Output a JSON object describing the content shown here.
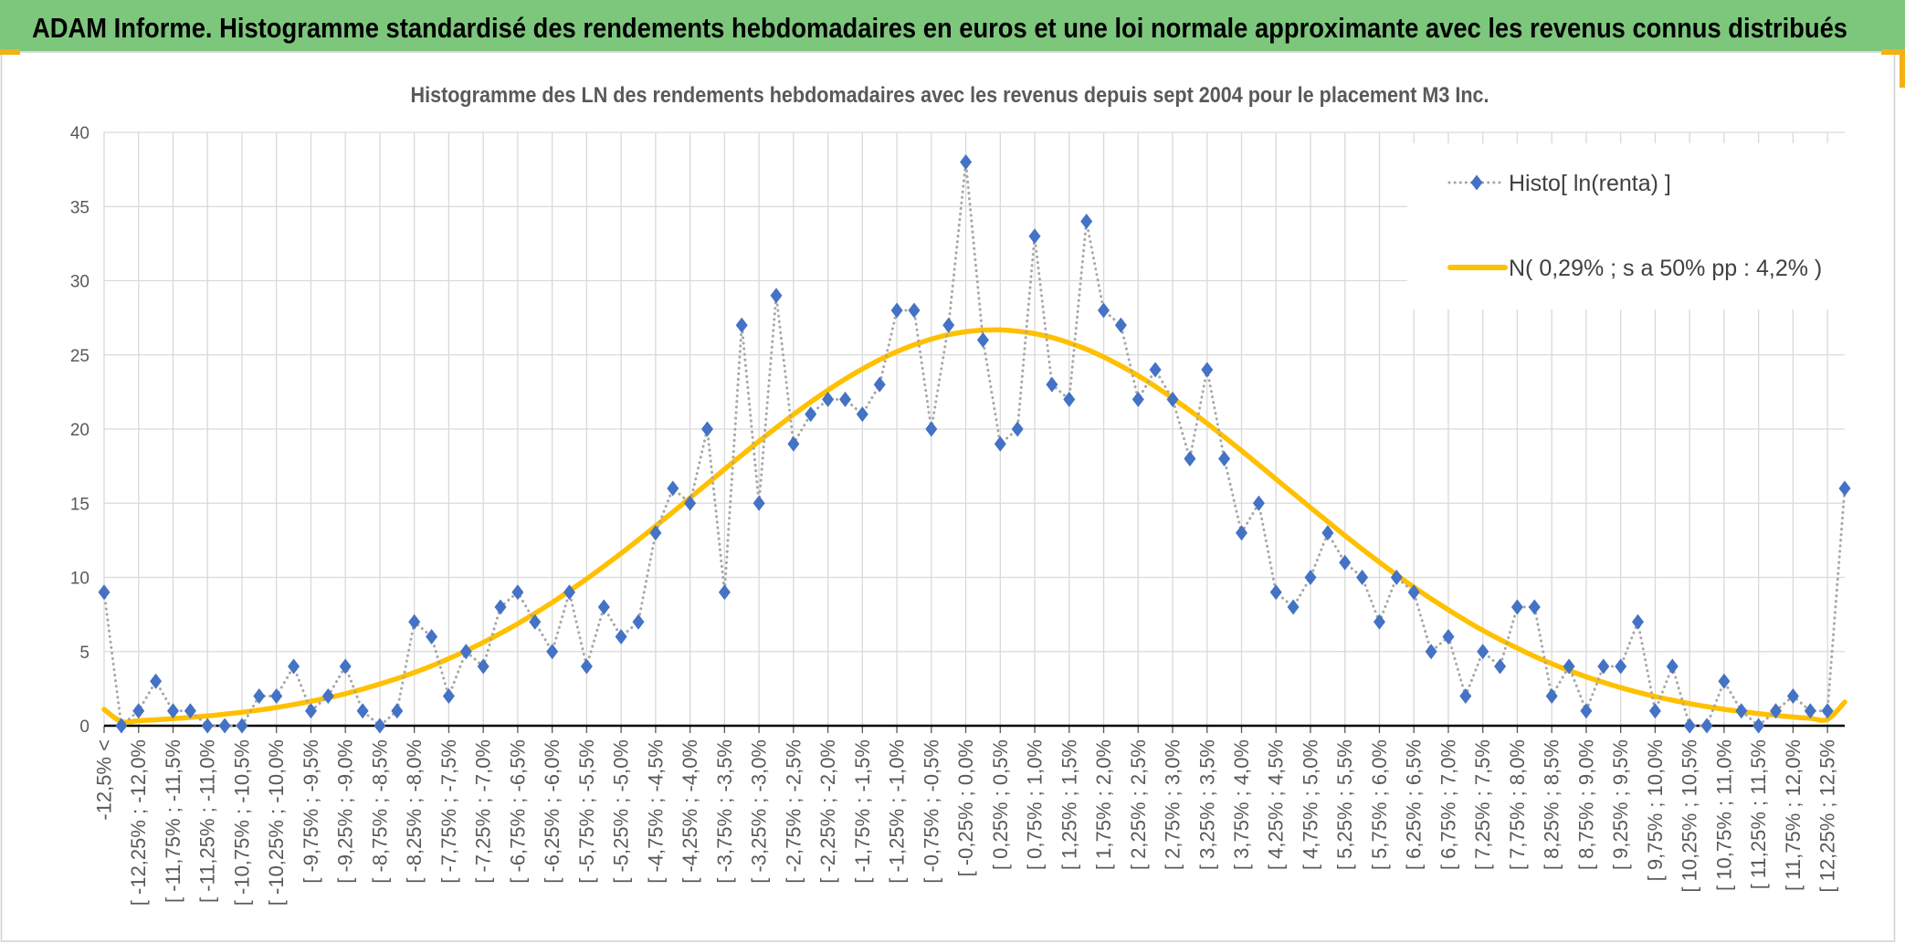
{
  "header": {
    "title": "ADAM Informe. Histogramme standardisé des rendements hebdomadaires en euros et une loi normale approximante avec les revenus connus distribués"
  },
  "colors": {
    "header_bg": "#7dc77d",
    "accent": "#f2b215",
    "frame": "#d0d0d0",
    "grid": "#d9d9d9",
    "axis": "#000000",
    "text": "#595959",
    "legend_text": "#404040",
    "histo_marker": "#4472c4",
    "histo_line": "#a6a6a6",
    "normal_line": "#ffc000"
  },
  "chart_data": {
    "type": "line",
    "title": "Histogramme des LN des rendements hebdomadaires avec les revenus depuis sept 2004 pour le placement M3 Inc.",
    "xlabel": "",
    "ylabel": "",
    "ylim": [
      0,
      40
    ],
    "y_tick_labels": [
      0,
      5,
      10,
      15,
      20,
      25,
      30,
      35,
      40
    ],
    "grid": true,
    "legend": "top-right",
    "x_tick_labels": [
      "-12,5% <",
      "[ -12,25% ; -12,0%",
      "[ -11,75% ; -11,5%",
      "[ -11,25% ; -11,0%",
      "[ -10,75% ; -10,5%",
      "[ -10,25% ; -10,0%",
      "[ -9,75% ; -9,5%",
      "[ -9,25% ; -9,0%",
      "[ -8,75% ; -8,5%",
      "[ -8,25% ; -8,0%",
      "[ -7,75% ; -7,5%",
      "[ -7,25% ; -7,0%",
      "[ -6,75% ; -6,5%",
      "[ -6,25% ; -6,0%",
      "[ -5,75% ; -5,5%",
      "[ -5,25% ; -5,0%",
      "[ -4,75% ; -4,5%",
      "[ -4,25% ; -4,0%",
      "[ -3,75% ; -3,5%",
      "[ -3,25% ; -3,0%",
      "[ -2,75% ; -2,5%",
      "[ -2,25% ; -2,0%",
      "[ -1,75% ; -1,5%",
      "[ -1,25% ; -1,0%",
      "[ -0,75% ; -0,5%",
      "[ -0,25% ; 0,0%",
      "[ 0,25% ; 0,5%",
      "[ 0,75% ; 1,0%",
      "[ 1,25% ; 1,5%",
      "[ 1,75% ; 2,0%",
      "[ 2,25% ; 2,5%",
      "[ 2,75% ; 3,0%",
      "[ 3,25% ; 3,5%",
      "[ 3,75% ; 4,0%",
      "[ 4,25% ; 4,5%",
      "[ 4,75% ; 5,0%",
      "[ 5,25% ; 5,5%",
      "[ 5,75% ; 6,0%",
      "[ 6,25% ; 6,5%",
      "[ 6,75% ; 7,0%",
      "[ 7,25% ; 7,5%",
      "[ 7,75% ; 8,0%",
      "[ 8,25% ; 8,5%",
      "[ 8,75% ; 9,0%",
      "[ 9,25% ; 9,5%",
      "[ 9,75% ; 10,0%",
      "[ 10,25% ; 10,5%",
      "[ 10,75% ; 11,0%",
      "[ 11,25% ; 11,5%",
      "[ 11,75% ; 12,0%",
      "[ 12,25% ; 12,5%"
    ],
    "series": [
      {
        "name": "Histo[ ln(renta) ]",
        "values": [
          9,
          0,
          1,
          3,
          1,
          1,
          0,
          0,
          0,
          2,
          2,
          4,
          1,
          2,
          4,
          1,
          0,
          1,
          7,
          6,
          2,
          5,
          4,
          8,
          9,
          7,
          5,
          9,
          4,
          8,
          6,
          7,
          13,
          16,
          15,
          20,
          9,
          27,
          15,
          29,
          19,
          21,
          22,
          22,
          21,
          23,
          28,
          28,
          20,
          27,
          38,
          26,
          19,
          20,
          33,
          23,
          22,
          34,
          28,
          27,
          22,
          24,
          22,
          18,
          24,
          18,
          13,
          15,
          9,
          8,
          10,
          13,
          11,
          10,
          7,
          10,
          9,
          5,
          6,
          2,
          5,
          4,
          8,
          8,
          2,
          4,
          1,
          4,
          4,
          7,
          1,
          4,
          0,
          0,
          3,
          1,
          0,
          1,
          2,
          1,
          1,
          16
        ]
      },
      {
        "name": "N( 0,29% ; s a 50% pp : 4,2% )",
        "values": [
          1.1,
          0.28,
          0.34,
          0.4,
          0.48,
          0.56,
          0.66,
          0.78,
          0.91,
          1.06,
          1.23,
          1.43,
          1.65,
          1.89,
          2.16,
          2.47,
          2.81,
          3.18,
          3.59,
          4.03,
          4.52,
          5.05,
          5.62,
          6.23,
          6.88,
          7.58,
          8.31,
          9.09,
          9.9,
          10.75,
          11.62,
          12.53,
          13.46,
          14.4,
          15.36,
          16.32,
          17.29,
          18.24,
          19.18,
          20.09,
          20.98,
          21.82,
          22.62,
          23.37,
          24.05,
          24.67,
          25.22,
          25.68,
          26.06,
          26.36,
          26.56,
          26.67,
          26.68,
          26.6,
          26.43,
          26.17,
          25.81,
          25.38,
          24.86,
          24.26,
          23.6,
          22.87,
          22.08,
          21.25,
          20.38,
          19.47,
          18.54,
          17.59,
          16.63,
          15.67,
          14.71,
          13.76,
          12.82,
          11.91,
          11.02,
          10.17,
          9.34,
          8.56,
          7.81,
          7.1,
          6.43,
          5.81,
          5.23,
          4.68,
          4.18,
          3.72,
          3.3,
          2.92,
          2.57,
          2.26,
          1.97,
          1.72,
          1.49,
          1.29,
          1.11,
          0.96,
          0.82,
          0.7,
          0.59,
          0.5,
          0.43,
          1.6
        ]
      }
    ]
  }
}
